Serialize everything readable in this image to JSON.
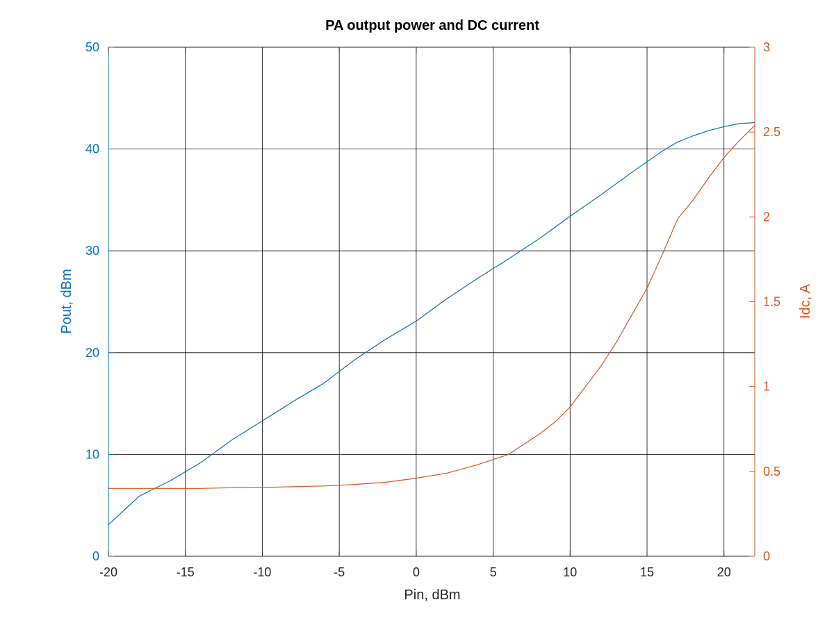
{
  "chart_data": {
    "type": "line",
    "title": "PA output power and DC current",
    "xlabel": "Pin, dBm",
    "ylabel_left": "Pout, dBm",
    "ylabel_right": "Idc, A",
    "xlim": [
      -20,
      22
    ],
    "ylim_left": [
      0,
      50
    ],
    "ylim_right": [
      0,
      3
    ],
    "x_ticks": [
      -20,
      -15,
      -10,
      -5,
      0,
      5,
      10,
      15,
      20
    ],
    "y_ticks_left": [
      0,
      10,
      20,
      30,
      40,
      50
    ],
    "y_ticks_right": [
      0,
      0.5,
      1,
      1.5,
      2,
      2.5,
      3
    ],
    "grid": true,
    "colors": {
      "left": "#0072BD",
      "right": "#D95319",
      "grid": "#000000",
      "text": "#000000"
    },
    "series": [
      {
        "axis": "left",
        "x": [
          -20,
          -18,
          -16,
          -14,
          -12,
          -10,
          -8,
          -6,
          -4,
          -2,
          0,
          2,
          4,
          6,
          8,
          10,
          12,
          14,
          16,
          17,
          18,
          19,
          20,
          21,
          22
        ],
        "y": [
          3.1,
          5.9,
          7.4,
          9.2,
          11.4,
          13.3,
          15.2,
          17.0,
          19.3,
          21.3,
          23.1,
          25.3,
          27.3,
          29.2,
          31.2,
          33.4,
          35.5,
          37.7,
          39.8,
          40.7,
          41.3,
          41.8,
          42.2,
          42.5,
          42.6
        ]
      },
      {
        "axis": "right",
        "x": [
          -20,
          -18,
          -16,
          -14,
          -12,
          -10,
          -8,
          -6,
          -4,
          -2,
          0,
          2,
          4,
          6,
          8,
          9,
          10,
          11,
          12,
          13,
          14,
          15,
          16,
          17,
          18,
          19,
          20,
          21,
          22
        ],
        "y": [
          0.4,
          0.4,
          0.4,
          0.4,
          0.404,
          0.405,
          0.41,
          0.414,
          0.423,
          0.436,
          0.46,
          0.49,
          0.54,
          0.6,
          0.72,
          0.79,
          0.88,
          1.0,
          1.12,
          1.26,
          1.42,
          1.58,
          1.78,
          1.99,
          2.1,
          2.23,
          2.35,
          2.45,
          2.54
        ]
      }
    ]
  }
}
